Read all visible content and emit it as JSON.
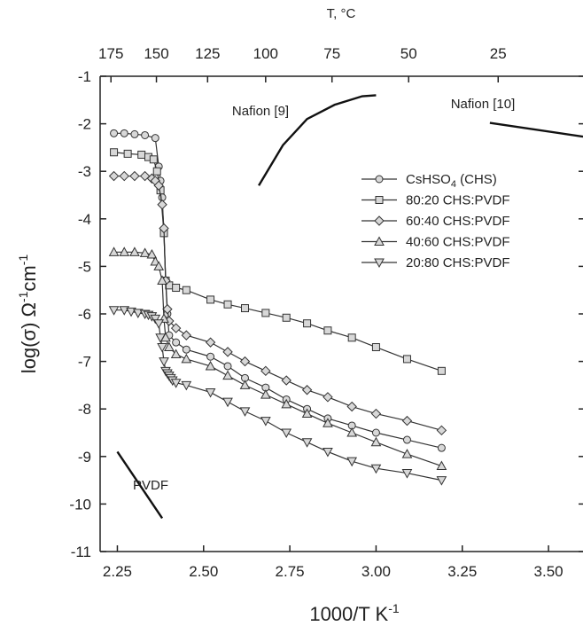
{
  "chart_data": {
    "type": "line",
    "xlabel": "1000/T  K",
    "xlabel_sup": "-1",
    "ylabel": "log(σ)  Ω",
    "ylabel_sup1": "-1",
    "ylabel_mid": "cm",
    "ylabel_sup2": "-1",
    "top_axis_title": "T, °C",
    "xlim": [
      2.2,
      3.6
    ],
    "ylim": [
      -11,
      -1
    ],
    "x_ticks": [
      "2.25",
      "2.50",
      "2.75",
      "3.00",
      "3.25",
      "3.50"
    ],
    "x_tick_values": [
      2.25,
      2.5,
      2.75,
      3.0,
      3.25,
      3.5
    ],
    "y_ticks": [
      "-1",
      "-2",
      "-3",
      "-4",
      "-5",
      "-6",
      "-7",
      "-8",
      "-9",
      "-10",
      "-11"
    ],
    "y_tick_values": [
      -1,
      -2,
      -3,
      -4,
      -5,
      -6,
      -7,
      -8,
      -9,
      -10,
      -11
    ],
    "top_ticks": [
      "175",
      "150",
      "125",
      "100",
      "75",
      "50",
      "25"
    ],
    "top_tick_values": [
      175,
      150,
      125,
      100,
      75,
      50,
      25
    ],
    "legend_position": "right, upper-middle",
    "series": [
      {
        "name": "CsHSO",
        "name_sub": "4",
        "name_tail": " (CHS)",
        "marker": "circle",
        "x": [
          2.24,
          2.27,
          2.3,
          2.33,
          2.36,
          2.37,
          2.375,
          2.38,
          2.385,
          2.39,
          2.395,
          2.4,
          2.42,
          2.45,
          2.52,
          2.57,
          2.62,
          2.68,
          2.74,
          2.8,
          2.86,
          2.93,
          3.0,
          3.09,
          3.19
        ],
        "y": [
          -2.2,
          -2.2,
          -2.22,
          -2.24,
          -2.3,
          -2.9,
          -3.2,
          -3.55,
          -4.3,
          -5.3,
          -6.0,
          -6.45,
          -6.6,
          -6.75,
          -6.9,
          -7.1,
          -7.35,
          -7.55,
          -7.8,
          -8.0,
          -8.2,
          -8.35,
          -8.5,
          -8.65,
          -8.82
        ]
      },
      {
        "name": "80:20 CHS:PVDF",
        "marker": "square",
        "x": [
          2.24,
          2.28,
          2.32,
          2.34,
          2.355,
          2.365,
          2.375,
          2.385,
          2.39,
          2.4,
          2.42,
          2.45,
          2.52,
          2.57,
          2.62,
          2.68,
          2.74,
          2.8,
          2.86,
          2.93,
          3.0,
          3.09,
          3.19
        ],
        "y": [
          -2.6,
          -2.63,
          -2.65,
          -2.7,
          -2.75,
          -3.0,
          -3.4,
          -4.3,
          -5.3,
          -5.4,
          -5.45,
          -5.5,
          -5.7,
          -5.8,
          -5.88,
          -5.98,
          -6.08,
          -6.2,
          -6.35,
          -6.5,
          -6.7,
          -6.95,
          -7.2
        ]
      },
      {
        "name": "60:40 CHS:PVDF",
        "marker": "diamond",
        "x": [
          2.24,
          2.27,
          2.3,
          2.33,
          2.35,
          2.36,
          2.37,
          2.38,
          2.385,
          2.39,
          2.395,
          2.4,
          2.42,
          2.45,
          2.52,
          2.57,
          2.62,
          2.68,
          2.74,
          2.8,
          2.86,
          2.93,
          3.0,
          3.09,
          3.19
        ],
        "y": [
          -3.1,
          -3.1,
          -3.1,
          -3.1,
          -3.15,
          -3.2,
          -3.3,
          -3.7,
          -4.2,
          -5.3,
          -5.9,
          -6.15,
          -6.3,
          -6.45,
          -6.6,
          -6.8,
          -7.0,
          -7.2,
          -7.4,
          -7.6,
          -7.75,
          -7.95,
          -8.1,
          -8.25,
          -8.45
        ]
      },
      {
        "name": "40:60 CHS:PVDF",
        "marker": "triangle-up",
        "x": [
          2.24,
          2.27,
          2.3,
          2.33,
          2.35,
          2.36,
          2.37,
          2.38,
          2.385,
          2.39,
          2.4,
          2.42,
          2.45,
          2.52,
          2.57,
          2.62,
          2.68,
          2.74,
          2.8,
          2.86,
          2.93,
          3.0,
          3.09,
          3.19
        ],
        "y": [
          -4.7,
          -4.7,
          -4.7,
          -4.72,
          -4.75,
          -4.9,
          -5.0,
          -5.3,
          -6.1,
          -6.5,
          -6.7,
          -6.85,
          -6.95,
          -7.1,
          -7.3,
          -7.5,
          -7.7,
          -7.9,
          -8.1,
          -8.3,
          -8.5,
          -8.7,
          -8.95,
          -9.2
        ]
      },
      {
        "name": "20:80 CHS:PVDF",
        "marker": "triangle-down",
        "x": [
          2.24,
          2.27,
          2.29,
          2.31,
          2.33,
          2.34,
          2.35,
          2.36,
          2.37,
          2.375,
          2.38,
          2.385,
          2.39,
          2.395,
          2.4,
          2.405,
          2.41,
          2.42,
          2.45,
          2.52,
          2.57,
          2.62,
          2.68,
          2.74,
          2.8,
          2.86,
          2.93,
          3.0,
          3.09,
          3.19
        ],
        "y": [
          -5.92,
          -5.92,
          -5.95,
          -5.98,
          -6.0,
          -6.02,
          -6.05,
          -6.1,
          -6.2,
          -6.5,
          -6.7,
          -7.0,
          -7.2,
          -7.25,
          -7.3,
          -7.35,
          -7.4,
          -7.45,
          -7.5,
          -7.65,
          -7.85,
          -8.05,
          -8.25,
          -8.5,
          -8.7,
          -8.9,
          -9.1,
          -9.25,
          -9.35,
          -9.5
        ]
      }
    ],
    "reference_lines": [
      {
        "label": "Nafion [9]",
        "x": [
          2.66,
          2.73,
          2.8,
          2.88,
          2.96,
          3.0
        ],
        "y": [
          -3.3,
          -2.45,
          -1.9,
          -1.6,
          -1.42,
          -1.4
        ]
      },
      {
        "label": "Nafion [10]",
        "x": [
          3.33,
          3.6
        ],
        "y": [
          -1.98,
          -2.27
        ]
      },
      {
        "label": "PVDF",
        "x": [
          2.25,
          2.38
        ],
        "y": [
          -8.9,
          -10.3
        ]
      }
    ]
  }
}
